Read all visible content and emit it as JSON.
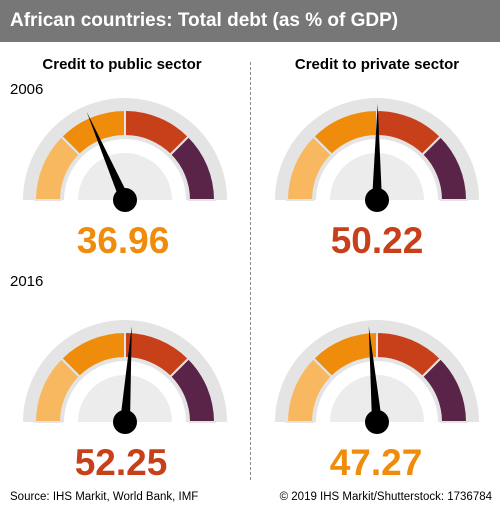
{
  "title": "African countries: Total debt (as % of GDP)",
  "footer": {
    "source": "Source: IHS Markit, World Bank, IMF",
    "credit": "© 2019 IHS Markit/Shutterstock: 1736784"
  },
  "colors": {
    "title_bar": "#777777",
    "segments": [
      "#f7b860",
      "#f08c0c",
      "#c8401a",
      "#5a2448"
    ],
    "value_orange": "#f08c0c",
    "value_red": "#c8401a",
    "needle": "#000000"
  },
  "chart_data": {
    "type": "gauge",
    "scale_min": 0,
    "scale_max": 100,
    "bands": [
      25,
      50,
      75,
      100
    ],
    "columns": [
      "Credit to public sector",
      "Credit to private sector"
    ],
    "years": [
      "2006",
      "2016"
    ],
    "gauges": [
      {
        "column": "Credit to public sector",
        "year": "2006",
        "value": 36.96,
        "label": "36.96",
        "value_color": "value_orange"
      },
      {
        "column": "Credit to private sector",
        "year": "2006",
        "value": 50.22,
        "label": "50.22",
        "value_color": "value_red"
      },
      {
        "column": "Credit to public sector",
        "year": "2016",
        "value": 52.25,
        "label": "52.25",
        "value_color": "value_red"
      },
      {
        "column": "Credit to private sector",
        "year": "2016",
        "value": 47.27,
        "label": "47.27",
        "value_color": "value_orange"
      }
    ]
  }
}
